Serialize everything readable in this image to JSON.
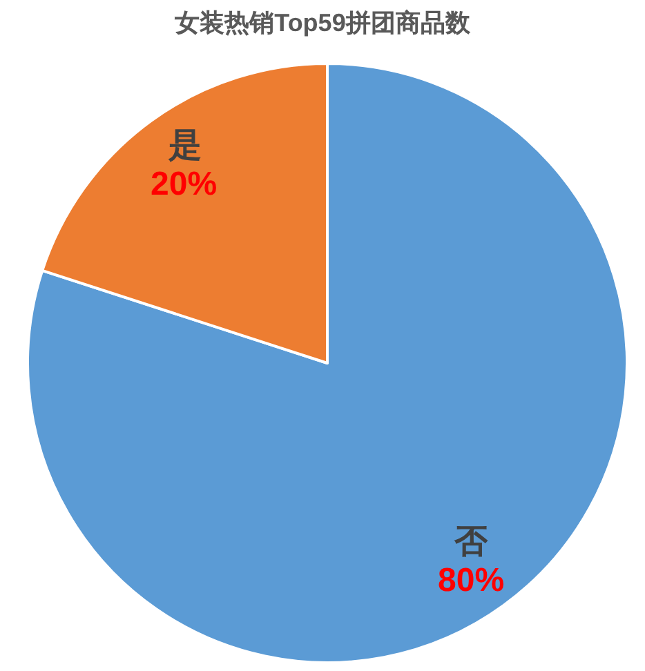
{
  "chart_data": {
    "type": "pie",
    "title": "女装热销Top59拼团商品数",
    "categories": [
      "否",
      "是"
    ],
    "values": [
      80,
      20
    ],
    "colors": [
      "#5b9bd5",
      "#ed7d31"
    ],
    "value_labels": [
      "80%",
      "20%"
    ]
  }
}
